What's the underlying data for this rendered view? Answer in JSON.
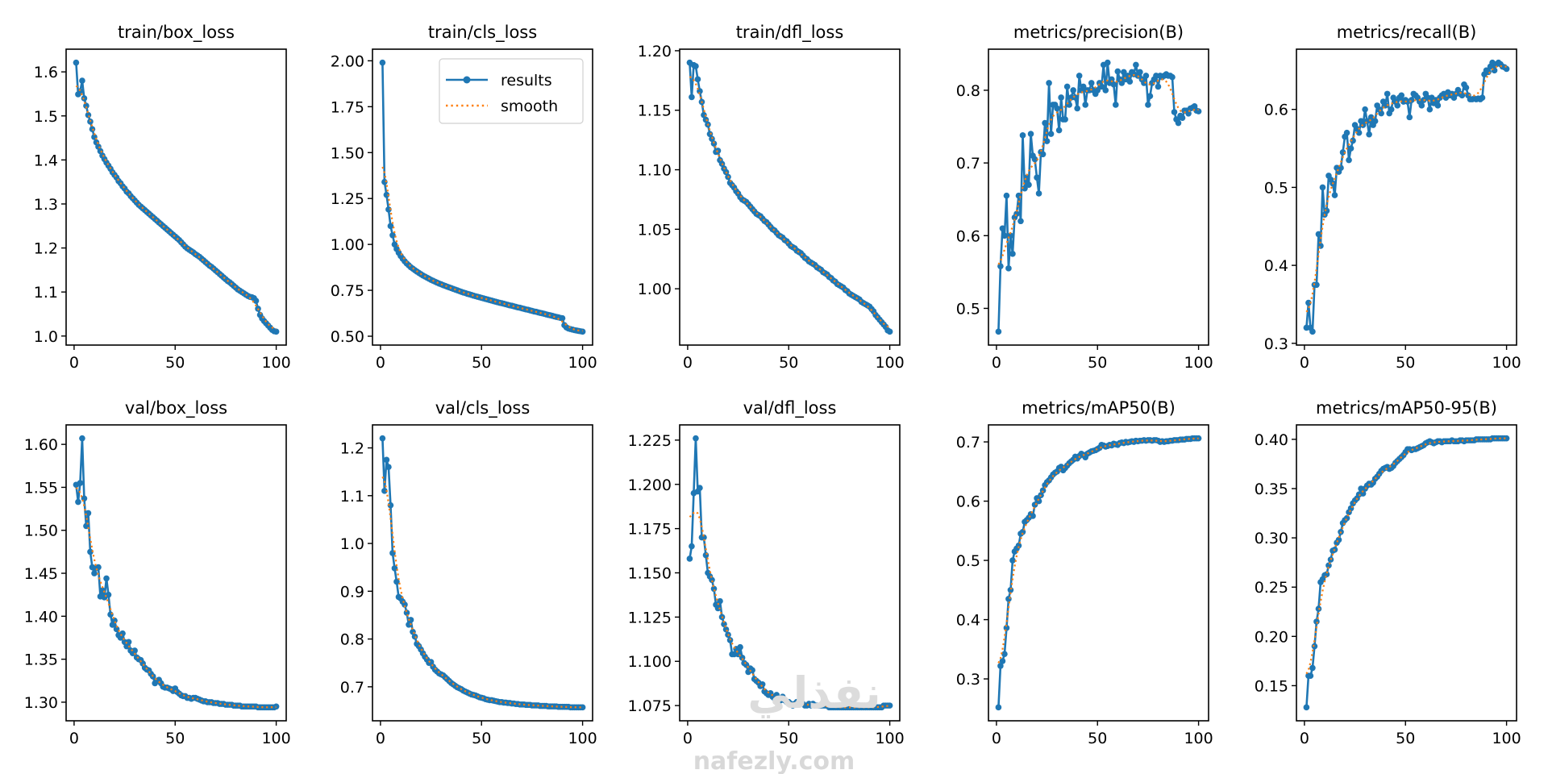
{
  "chart_data": [
    {
      "type": "line",
      "title": "train/box_loss",
      "yticks": [
        1.0,
        1.1,
        1.2,
        1.3,
        1.4,
        1.5,
        1.6
      ],
      "ytick_labels": [
        "1.0",
        "1.1",
        "1.2",
        "1.3",
        "1.4",
        "1.5",
        "1.6"
      ],
      "values": [
        1.621,
        1.549,
        1.556,
        1.58,
        1.54,
        1.523,
        1.502,
        1.487,
        1.47,
        1.452,
        1.44,
        1.43,
        1.42,
        1.41,
        1.402,
        1.394,
        1.387,
        1.38,
        1.372,
        1.366,
        1.36,
        1.352,
        1.347,
        1.34,
        1.335,
        1.328,
        1.324,
        1.318,
        1.313,
        1.308,
        1.303,
        1.298,
        1.294,
        1.29,
        1.286,
        1.282,
        1.278,
        1.274,
        1.27,
        1.266,
        1.262,
        1.258,
        1.254,
        1.25,
        1.246,
        1.242,
        1.238,
        1.234,
        1.23,
        1.226,
        1.222,
        1.218,
        1.213,
        1.208,
        1.203,
        1.199,
        1.196,
        1.193,
        1.19,
        1.186,
        1.183,
        1.18,
        1.176,
        1.172,
        1.168,
        1.164,
        1.16,
        1.157,
        1.153,
        1.149,
        1.145,
        1.141,
        1.137,
        1.133,
        1.129,
        1.125,
        1.122,
        1.118,
        1.114,
        1.11,
        1.106,
        1.103,
        1.1,
        1.097,
        1.094,
        1.091,
        1.089,
        1.088,
        1.086,
        1.08,
        1.062,
        1.048,
        1.04,
        1.034,
        1.029,
        1.024,
        1.019,
        1.014,
        1.011,
        1.01
      ]
    },
    {
      "type": "line",
      "title": "train/cls_loss",
      "yticks": [
        0.5,
        0.75,
        1.0,
        1.25,
        1.5,
        1.75,
        2.0
      ],
      "ytick_labels": [
        "0.50",
        "0.75",
        "1.00",
        "1.25",
        "1.50",
        "1.75",
        "2.00"
      ],
      "values": [
        1.99,
        1.34,
        1.27,
        1.19,
        1.1,
        1.05,
        1.0,
        0.975,
        0.955,
        0.937,
        0.922,
        0.908,
        0.896,
        0.886,
        0.876,
        0.868,
        0.86,
        0.852,
        0.845,
        0.838,
        0.831,
        0.825,
        0.819,
        0.813,
        0.807,
        0.802,
        0.797,
        0.792,
        0.787,
        0.783,
        0.778,
        0.774,
        0.77,
        0.766,
        0.762,
        0.758,
        0.754,
        0.75,
        0.746,
        0.742,
        0.738,
        0.735,
        0.731,
        0.728,
        0.725,
        0.721,
        0.718,
        0.715,
        0.712,
        0.709,
        0.706,
        0.703,
        0.7,
        0.697,
        0.694,
        0.691,
        0.688,
        0.685,
        0.682,
        0.68,
        0.677,
        0.674,
        0.671,
        0.668,
        0.666,
        0.663,
        0.66,
        0.657,
        0.655,
        0.652,
        0.649,
        0.646,
        0.644,
        0.641,
        0.638,
        0.635,
        0.633,
        0.63,
        0.627,
        0.625,
        0.622,
        0.619,
        0.616,
        0.614,
        0.611,
        0.608,
        0.605,
        0.603,
        0.6,
        0.598,
        0.56,
        0.548,
        0.542,
        0.539,
        0.536,
        0.533,
        0.531,
        0.529,
        0.527,
        0.525
      ]
    },
    {
      "type": "line",
      "title": "train/dfl_loss",
      "yticks": [
        1.0,
        1.05,
        1.1,
        1.15,
        1.2
      ],
      "ytick_labels": [
        "1.00",
        "1.05",
        "1.10",
        "1.15",
        "1.20"
      ],
      "values": [
        1.19,
        1.161,
        1.188,
        1.187,
        1.176,
        1.166,
        1.157,
        1.146,
        1.142,
        1.138,
        1.13,
        1.126,
        1.122,
        1.115,
        1.116,
        1.108,
        1.105,
        1.101,
        1.098,
        1.094,
        1.089,
        1.087,
        1.085,
        1.082,
        1.08,
        1.077,
        1.075,
        1.074,
        1.073,
        1.071,
        1.069,
        1.067,
        1.065,
        1.063,
        1.062,
        1.061,
        1.059,
        1.057,
        1.056,
        1.054,
        1.052,
        1.05,
        1.049,
        1.047,
        1.045,
        1.044,
        1.043,
        1.041,
        1.04,
        1.038,
        1.036,
        1.035,
        1.034,
        1.032,
        1.031,
        1.03,
        1.028,
        1.026,
        1.025,
        1.023,
        1.022,
        1.021,
        1.02,
        1.018,
        1.017,
        1.016,
        1.014,
        1.013,
        1.012,
        1.01,
        1.009,
        1.007,
        1.006,
        1.004,
        1.003,
        1.002,
        1.001,
        0.999,
        0.998,
        0.996,
        0.995,
        0.994,
        0.993,
        0.992,
        0.991,
        0.989,
        0.988,
        0.987,
        0.986,
        0.985,
        0.983,
        0.981,
        0.978,
        0.976,
        0.974,
        0.972,
        0.97,
        0.968,
        0.965,
        0.964
      ]
    },
    {
      "type": "line",
      "title": "metrics/precision(B)",
      "yticks": [
        0.5,
        0.6,
        0.7,
        0.8
      ],
      "ytick_labels": [
        "0.5",
        "0.6",
        "0.7",
        "0.8"
      ],
      "values": [
        0.468,
        0.558,
        0.61,
        0.6,
        0.655,
        0.555,
        0.6,
        0.575,
        0.625,
        0.63,
        0.655,
        0.62,
        0.738,
        0.665,
        0.68,
        0.67,
        0.74,
        0.71,
        0.705,
        0.68,
        0.658,
        0.715,
        0.712,
        0.755,
        0.73,
        0.81,
        0.74,
        0.78,
        0.78,
        0.775,
        0.745,
        0.79,
        0.76,
        0.76,
        0.805,
        0.78,
        0.79,
        0.8,
        0.79,
        0.775,
        0.82,
        0.8,
        0.805,
        0.78,
        0.8,
        0.8,
        0.81,
        0.8,
        0.795,
        0.8,
        0.81,
        0.805,
        0.835,
        0.8,
        0.838,
        0.81,
        0.815,
        0.808,
        0.78,
        0.826,
        0.815,
        0.81,
        0.825,
        0.815,
        0.82,
        0.812,
        0.825,
        0.822,
        0.835,
        0.82,
        0.825,
        0.815,
        0.81,
        0.82,
        0.78,
        0.792,
        0.81,
        0.815,
        0.82,
        0.805,
        0.82,
        0.818,
        0.82,
        0.822,
        0.82,
        0.82,
        0.818,
        0.77,
        0.76,
        0.755,
        0.765,
        0.762,
        0.772,
        0.772,
        0.768,
        0.775,
        0.776,
        0.778,
        0.772,
        0.771
      ]
    },
    {
      "type": "line",
      "title": "metrics/recall(B)",
      "yticks": [
        0.3,
        0.4,
        0.5,
        0.6
      ],
      "ytick_labels": [
        "0.3",
        "0.4",
        "0.5",
        "0.6"
      ],
      "values": [
        0.32,
        0.352,
        0.32,
        0.315,
        0.375,
        0.375,
        0.44,
        0.425,
        0.5,
        0.465,
        0.47,
        0.515,
        0.51,
        0.505,
        0.49,
        0.525,
        0.52,
        0.525,
        0.545,
        0.565,
        0.57,
        0.535,
        0.55,
        0.56,
        0.58,
        0.575,
        0.57,
        0.585,
        0.58,
        0.6,
        0.585,
        0.568,
        0.59,
        0.58,
        0.585,
        0.605,
        0.6,
        0.595,
        0.61,
        0.605,
        0.62,
        0.595,
        0.6,
        0.615,
        0.61,
        0.605,
        0.615,
        0.618,
        0.61,
        0.612,
        0.61,
        0.59,
        0.612,
        0.62,
        0.618,
        0.615,
        0.61,
        0.605,
        0.612,
        0.62,
        0.615,
        0.6,
        0.615,
        0.608,
        0.612,
        0.605,
        0.615,
        0.618,
        0.62,
        0.615,
        0.622,
        0.618,
        0.62,
        0.615,
        0.62,
        0.625,
        0.62,
        0.618,
        0.632,
        0.628,
        0.618,
        0.613,
        0.613,
        0.614,
        0.613,
        0.614,
        0.613,
        0.615,
        0.645,
        0.65,
        0.648,
        0.655,
        0.66,
        0.65,
        0.658,
        0.66,
        0.658,
        0.655,
        0.654,
        0.652
      ]
    },
    {
      "type": "line",
      "title": "val/box_loss",
      "yticks": [
        1.3,
        1.35,
        1.4,
        1.45,
        1.5,
        1.55,
        1.6
      ],
      "ytick_labels": [
        "1.30",
        "1.35",
        "1.40",
        "1.45",
        "1.50",
        "1.55",
        "1.60"
      ],
      "values": [
        1.553,
        1.533,
        1.555,
        1.607,
        1.537,
        1.505,
        1.52,
        1.475,
        1.457,
        1.45,
        1.456,
        1.457,
        1.423,
        1.43,
        1.422,
        1.444,
        1.425,
        1.402,
        1.39,
        1.395,
        1.385,
        1.378,
        1.375,
        1.38,
        1.37,
        1.365,
        1.37,
        1.36,
        1.357,
        1.36,
        1.352,
        1.35,
        1.349,
        1.345,
        1.34,
        1.338,
        1.337,
        1.333,
        1.33,
        1.322,
        1.325,
        1.326,
        1.322,
        1.318,
        1.317,
        1.317,
        1.316,
        1.315,
        1.313,
        1.316,
        1.312,
        1.31,
        1.308,
        1.307,
        1.307,
        1.305,
        1.305,
        1.304,
        1.305,
        1.305,
        1.304,
        1.303,
        1.302,
        1.301,
        1.301,
        1.3,
        1.3,
        1.3,
        1.299,
        1.299,
        1.299,
        1.298,
        1.298,
        1.298,
        1.297,
        1.297,
        1.297,
        1.297,
        1.296,
        1.296,
        1.296,
        1.296,
        1.295,
        1.295,
        1.295,
        1.295,
        1.295,
        1.295,
        1.295,
        1.295,
        1.294,
        1.294,
        1.294,
        1.294,
        1.294,
        1.294,
        1.294,
        1.294,
        1.294,
        1.295
      ]
    },
    {
      "type": "line",
      "title": "val/cls_loss",
      "yticks": [
        0.7,
        0.8,
        0.9,
        1.0,
        1.1,
        1.2
      ],
      "ytick_labels": [
        "0.7",
        "0.8",
        "0.9",
        "1.0",
        "1.1",
        "1.2"
      ],
      "values": [
        1.22,
        1.11,
        1.175,
        1.16,
        1.08,
        0.98,
        0.948,
        0.92,
        0.888,
        0.885,
        0.878,
        0.872,
        0.855,
        0.83,
        0.84,
        0.815,
        0.805,
        0.79,
        0.785,
        0.778,
        0.77,
        0.763,
        0.757,
        0.75,
        0.752,
        0.742,
        0.736,
        0.732,
        0.728,
        0.726,
        0.724,
        0.72,
        0.716,
        0.712,
        0.708,
        0.705,
        0.702,
        0.699,
        0.697,
        0.695,
        0.692,
        0.69,
        0.688,
        0.686,
        0.684,
        0.683,
        0.682,
        0.68,
        0.678,
        0.677,
        0.676,
        0.674,
        0.673,
        0.672,
        0.672,
        0.671,
        0.67,
        0.669,
        0.668,
        0.668,
        0.667,
        0.667,
        0.666,
        0.666,
        0.665,
        0.665,
        0.664,
        0.664,
        0.663,
        0.663,
        0.663,
        0.662,
        0.662,
        0.662,
        0.661,
        0.661,
        0.661,
        0.661,
        0.66,
        0.66,
        0.66,
        0.66,
        0.659,
        0.659,
        0.659,
        0.659,
        0.659,
        0.658,
        0.658,
        0.658,
        0.658,
        0.658,
        0.658,
        0.657,
        0.657,
        0.657,
        0.657,
        0.657,
        0.657,
        0.657
      ]
    },
    {
      "type": "line",
      "title": "val/dfl_loss",
      "yticks": [
        1.075,
        1.1,
        1.125,
        1.15,
        1.175,
        1.2,
        1.225
      ],
      "ytick_labels": [
        "1.075",
        "1.100",
        "1.125",
        "1.150",
        "1.175",
        "1.200",
        "1.225"
      ],
      "values": [
        1.158,
        1.165,
        1.195,
        1.226,
        1.196,
        1.198,
        1.17,
        1.17,
        1.16,
        1.15,
        1.148,
        1.146,
        1.141,
        1.132,
        1.13,
        1.134,
        1.125,
        1.121,
        1.118,
        1.115,
        1.112,
        1.104,
        1.104,
        1.107,
        1.104,
        1.108,
        1.102,
        1.099,
        1.098,
        1.094,
        1.096,
        1.095,
        1.09,
        1.089,
        1.088,
        1.086,
        1.087,
        1.083,
        1.082,
        1.081,
        1.082,
        1.08,
        1.079,
        1.081,
        1.079,
        1.078,
        1.08,
        1.078,
        1.077,
        1.077,
        1.076,
        1.075,
        1.076,
        1.077,
        1.076,
        1.076,
        1.076,
        1.075,
        1.075,
        1.076,
        1.075,
        1.076,
        1.075,
        1.075,
        1.075,
        1.075,
        1.075,
        1.075,
        1.075,
        1.074,
        1.074,
        1.074,
        1.074,
        1.074,
        1.074,
        1.074,
        1.074,
        1.074,
        1.074,
        1.074,
        1.074,
        1.074,
        1.074,
        1.074,
        1.074,
        1.074,
        1.074,
        1.074,
        1.074,
        1.074,
        1.074,
        1.074,
        1.074,
        1.074,
        1.074,
        1.074,
        1.075,
        1.075,
        1.075,
        1.075
      ]
    },
    {
      "type": "line",
      "title": "metrics/mAP50(B)",
      "yticks": [
        0.3,
        0.4,
        0.5,
        0.6,
        0.7
      ],
      "ytick_labels": [
        "0.3",
        "0.4",
        "0.5",
        "0.6",
        "0.7"
      ],
      "values": [
        0.252,
        0.322,
        0.33,
        0.342,
        0.386,
        0.435,
        0.45,
        0.5,
        0.515,
        0.52,
        0.525,
        0.545,
        0.548,
        0.565,
        0.568,
        0.572,
        0.578,
        0.575,
        0.594,
        0.605,
        0.6,
        0.61,
        0.618,
        0.627,
        0.632,
        0.635,
        0.64,
        0.645,
        0.648,
        0.65,
        0.656,
        0.658,
        0.652,
        0.656,
        0.66,
        0.664,
        0.667,
        0.67,
        0.675,
        0.672,
        0.676,
        0.68,
        0.678,
        0.674,
        0.68,
        0.682,
        0.684,
        0.685,
        0.686,
        0.688,
        0.69,
        0.695,
        0.694,
        0.692,
        0.693,
        0.695,
        0.694,
        0.697,
        0.696,
        0.695,
        0.698,
        0.699,
        0.698,
        0.7,
        0.699,
        0.7,
        0.701,
        0.7,
        0.702,
        0.701,
        0.702,
        0.702,
        0.703,
        0.702,
        0.703,
        0.703,
        0.702,
        0.703,
        0.703,
        0.702,
        0.7,
        0.701,
        0.7,
        0.701,
        0.701,
        0.702,
        0.702,
        0.703,
        0.703,
        0.703,
        0.704,
        0.704,
        0.704,
        0.705,
        0.705,
        0.705,
        0.706,
        0.706,
        0.706,
        0.706
      ]
    },
    {
      "type": "line",
      "title": "metrics/mAP50-95(B)",
      "yticks": [
        0.15,
        0.2,
        0.25,
        0.3,
        0.35,
        0.4
      ],
      "ytick_labels": [
        "0.15",
        "0.20",
        "0.25",
        "0.30",
        "0.35",
        "0.40"
      ],
      "values": [
        0.128,
        0.16,
        0.16,
        0.168,
        0.19,
        0.215,
        0.228,
        0.255,
        0.258,
        0.262,
        0.263,
        0.272,
        0.278,
        0.287,
        0.288,
        0.295,
        0.298,
        0.306,
        0.315,
        0.318,
        0.32,
        0.326,
        0.33,
        0.335,
        0.338,
        0.34,
        0.344,
        0.35,
        0.345,
        0.35,
        0.353,
        0.355,
        0.354,
        0.356,
        0.36,
        0.362,
        0.365,
        0.368,
        0.37,
        0.371,
        0.372,
        0.37,
        0.371,
        0.373,
        0.376,
        0.378,
        0.38,
        0.382,
        0.384,
        0.387,
        0.39,
        0.39,
        0.389,
        0.39,
        0.39,
        0.391,
        0.392,
        0.393,
        0.394,
        0.396,
        0.397,
        0.398,
        0.397,
        0.396,
        0.397,
        0.398,
        0.398,
        0.397,
        0.398,
        0.398,
        0.398,
        0.398,
        0.399,
        0.398,
        0.398,
        0.398,
        0.399,
        0.399,
        0.398,
        0.399,
        0.399,
        0.399,
        0.399,
        0.399,
        0.4,
        0.4,
        0.4,
        0.4,
        0.4,
        0.4,
        0.4,
        0.4,
        0.401,
        0.401,
        0.401,
        0.401,
        0.401,
        0.401,
        0.401,
        0.401
      ]
    }
  ],
  "shared": {
    "x_start": 1,
    "xticks": [
      0,
      50,
      100
    ],
    "xtick_labels": [
      "0",
      "50",
      "100"
    ],
    "xlim": [
      -3.95,
      104.95
    ],
    "smooth_sigma": 3
  },
  "legend": {
    "location": "upper right",
    "panel": 1,
    "results_label": "results",
    "smooth_label": "smooth"
  },
  "colors": {
    "results": "#1f77b4",
    "smooth": "#ff7f0e",
    "axes": "#000000"
  },
  "watermark": {
    "logo": "نفذلي",
    "text": "nafezly.com"
  }
}
